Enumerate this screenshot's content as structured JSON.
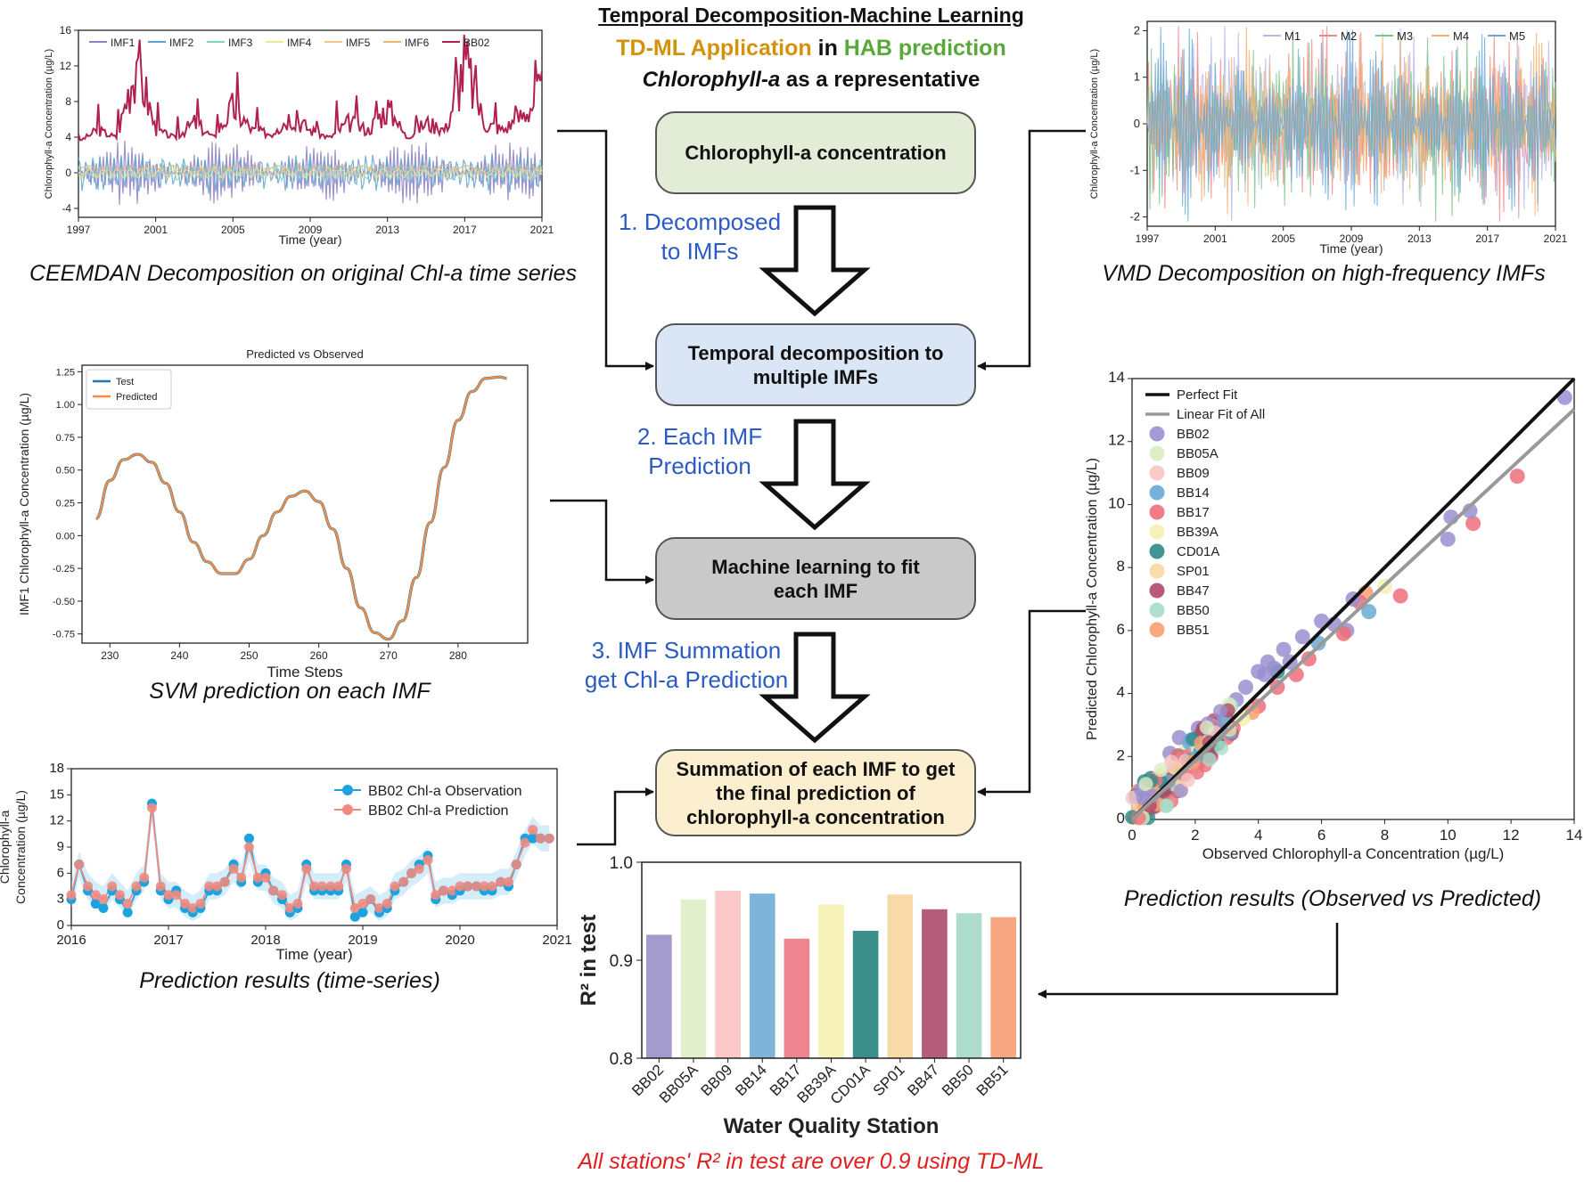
{
  "header": {
    "title": "Temporal Decomposition-Machine Learning",
    "app_part1": "TD-ML Application",
    "app_in": " in ",
    "app_part2": "HAB prediction",
    "subtitle_italic": "Chlorophyll-a",
    "subtitle_rest": " as a representative"
  },
  "colors": {
    "orange": "#d4920a",
    "green": "#5aa83a",
    "blue_step": "#2a5bc4",
    "red_note": "#e02020"
  },
  "flow": {
    "boxes": [
      {
        "text": "Chlorophyll-a concentration",
        "color": "#e2ecd6"
      },
      {
        "text": "Temporal decomposition to multiple IMFs",
        "color": "#dae6f6"
      },
      {
        "text": "Machine learning to fit each IMF",
        "color": "#c9c9c9"
      },
      {
        "text": "Summation of each IMF to get the final prediction of chlorophyll-a concentration",
        "color": "#fbefd0"
      }
    ],
    "steps": [
      "1. Decomposed\nto IMFs",
      "2. Each IMF\nPrediction",
      "3. IMF Summation\nget Chl-a Prediction"
    ]
  },
  "captions": {
    "ceemdan": "CEEMDAN Decomposition on original Chl-a time series",
    "vmd": "VMD Decomposition on high-frequency IMFs",
    "svm": "SVM prediction on each IMF",
    "ts": "Prediction results (time-series)",
    "scatter": "Prediction results (Observed vs Predicted)",
    "r2_note": "All stations' R² in test are over 0.9 using TD-ML"
  },
  "chart_data": [
    {
      "id": "ceemdan",
      "type": "line",
      "ylabel": "Chlorophyll-a Concentration (µg/L)",
      "xlabel": "Time (year)",
      "xticks": [
        "1997",
        "2001",
        "2005",
        "2009",
        "2013",
        "2017",
        "2021"
      ],
      "yticks": [
        "-4",
        "0",
        "4",
        "8",
        "12",
        "16"
      ],
      "ylim": [
        -5,
        16
      ],
      "legend": [
        "IMF1",
        "IMF2",
        "IMF3",
        "IMF4",
        "IMF5",
        "IMF6",
        "BB02"
      ],
      "legend_colors": [
        "#8f7fc4",
        "#5aa5d4",
        "#7fd4c4",
        "#e8e88a",
        "#f5c488",
        "#f0b470",
        "#b02050"
      ],
      "BB02_sample": {
        "x": [
          1997,
          1998,
          1999,
          2000,
          2001,
          2002,
          2003,
          2004,
          2005,
          2006,
          2007,
          2008,
          2009,
          2010,
          2011,
          2012,
          2013,
          2014,
          2015,
          2016,
          2017,
          2018,
          2019,
          2020,
          2021
        ],
        "y": [
          3.5,
          5,
          4,
          14.5,
          5,
          4,
          6,
          4,
          8,
          5,
          4.5,
          7,
          5,
          4,
          6,
          5,
          8,
          4,
          6,
          5,
          14,
          6,
          5,
          7,
          10
        ]
      }
    },
    {
      "id": "vmd",
      "type": "line",
      "ylabel": "Chlorophyll-a Concentration (µg/L)",
      "xlabel": "Time (year)",
      "xticks": [
        "1997",
        "2001",
        "2005",
        "2009",
        "2013",
        "2017",
        "2021"
      ],
      "yticks": [
        "-2",
        "-1",
        "0",
        "1",
        "2"
      ],
      "ylim": [
        -2.2,
        2.2
      ],
      "legend": [
        "M1",
        "M2",
        "M3",
        "M4",
        "M5"
      ],
      "legend_colors": [
        "#b8b8e8",
        "#f08a8a",
        "#7fc48a",
        "#f5b070",
        "#6aa8d8"
      ]
    },
    {
      "id": "svm",
      "type": "line",
      "title": "Predicted vs Observed",
      "ylabel": "IMF1 Chlorophyll-a Concentration (µg/L)",
      "xlabel": "Time Steps",
      "xlim": [
        226,
        290
      ],
      "xticks": [
        "230",
        "240",
        "250",
        "260",
        "270",
        "280"
      ],
      "yticks": [
        "-0.75",
        "-0.50",
        "-0.25",
        "0.00",
        "0.25",
        "0.50",
        "0.75",
        "1.00",
        "1.25"
      ],
      "ylim": [
        -0.82,
        1.3
      ],
      "series": [
        {
          "name": "Test",
          "color": "#1f77b4"
        },
        {
          "name": "Predicted",
          "color": "#ff8c3a"
        }
      ],
      "x": [
        228,
        230,
        232,
        234,
        236,
        238,
        240,
        242,
        244,
        246,
        248,
        250,
        252,
        254,
        256,
        258,
        260,
        262,
        264,
        266,
        268,
        270,
        272,
        274,
        276,
        278,
        280,
        282,
        284,
        286,
        287
      ],
      "y": [
        0.13,
        0.42,
        0.58,
        0.62,
        0.56,
        0.4,
        0.18,
        -0.05,
        -0.2,
        -0.29,
        -0.29,
        -0.18,
        0.0,
        0.18,
        0.3,
        0.34,
        0.26,
        0.05,
        -0.25,
        -0.55,
        -0.74,
        -0.79,
        -0.65,
        -0.32,
        0.1,
        0.52,
        0.88,
        1.1,
        1.2,
        1.21,
        1.2
      ]
    },
    {
      "id": "ts",
      "type": "line",
      "ylabel": "Chlorophyll-a\nConcentration (µg/L)",
      "xlabel": "Time (year)",
      "xticks": [
        "2016",
        "2017",
        "2018",
        "2019",
        "2020",
        "2021"
      ],
      "yticks": [
        "0",
        "3",
        "6",
        "9",
        "12",
        "15",
        "18"
      ],
      "ylim": [
        0,
        18
      ],
      "series": [
        {
          "name": "BB02 Chl-a Observation",
          "color": "#1aa3e0"
        },
        {
          "name": "BB02 Chl-a Prediction",
          "color": "#f08a80"
        }
      ],
      "x": [
        2016.0,
        2016.08,
        2016.17,
        2016.25,
        2016.33,
        2016.42,
        2016.5,
        2016.58,
        2016.67,
        2016.75,
        2016.83,
        2016.92,
        2017.0,
        2017.08,
        2017.17,
        2017.25,
        2017.33,
        2017.42,
        2017.5,
        2017.58,
        2017.67,
        2017.75,
        2017.83,
        2017.92,
        2018.0,
        2018.08,
        2018.17,
        2018.25,
        2018.33,
        2018.42,
        2018.5,
        2018.58,
        2018.67,
        2018.75,
        2018.83,
        2018.92,
        2019.0,
        2019.08,
        2019.17,
        2019.25,
        2019.33,
        2019.42,
        2019.5,
        2019.58,
        2019.67,
        2019.75,
        2019.83,
        2019.92,
        2020.0,
        2020.08,
        2020.17,
        2020.25,
        2020.33,
        2020.42,
        2020.5,
        2020.58,
        2020.67,
        2020.75,
        2020.83,
        2020.92
      ],
      "obs": [
        3,
        7,
        4,
        2.5,
        2,
        4,
        3,
        1.5,
        4,
        5,
        14,
        4,
        3,
        4,
        2,
        1.5,
        2,
        4,
        4,
        5,
        7,
        5,
        10,
        5,
        6,
        4,
        3,
        1.5,
        2,
        7,
        4,
        4,
        4,
        4,
        7,
        1,
        1.5,
        3,
        1.5,
        2,
        4,
        5,
        6,
        7,
        8,
        3,
        4,
        3.5,
        4,
        4.5,
        4.5,
        4,
        4,
        5,
        4.5,
        7,
        10,
        10,
        10,
        10
      ],
      "pred": [
        3.5,
        7,
        4.5,
        3.5,
        3,
        4.5,
        3.5,
        2.5,
        4.5,
        5.5,
        13.5,
        4.5,
        3.5,
        3.5,
        2.5,
        2,
        2.5,
        4.5,
        4.5,
        5,
        6.5,
        5.5,
        9,
        5.5,
        5.5,
        4,
        3.5,
        2,
        2.5,
        6.5,
        4.5,
        4.5,
        4.5,
        4.5,
        6.5,
        2,
        2.5,
        3,
        2,
        2.5,
        4.5,
        5,
        6,
        6.5,
        7.5,
        3.5,
        4,
        4,
        4.5,
        4.5,
        4.5,
        4.5,
        4.5,
        5,
        5,
        7,
        9.5,
        11,
        10,
        10
      ]
    },
    {
      "id": "scatter",
      "type": "scatter",
      "xlabel": "Observed Chlorophyll-a Concentration (µg/L)",
      "ylabel": "Predicted Chlorophyll-a Concentration (µg/L)",
      "xlim": [
        0,
        14
      ],
      "ylim": [
        0,
        14
      ],
      "xticks": [
        "0",
        "2",
        "4",
        "6",
        "8",
        "10",
        "12",
        "14"
      ],
      "yticks": [
        "0",
        "2",
        "4",
        "6",
        "8",
        "10",
        "12",
        "14"
      ],
      "lines": [
        {
          "name": "Perfect Fit",
          "color": "#111111",
          "slope": 1.0
        },
        {
          "name": "Linear Fit of All",
          "color": "#999999",
          "slope": 0.93
        }
      ],
      "stations": [
        "BB02",
        "BB05A",
        "BB09",
        "BB14",
        "BB17",
        "BB39A",
        "CD01A",
        "SP01",
        "BB47",
        "BB50",
        "BB51"
      ],
      "station_colors": [
        "#9a8fd0",
        "#dcecc0",
        "#f8c4c4",
        "#6aaad4",
        "#ee6e7a",
        "#f4f0b0",
        "#2e8a8a",
        "#f8d8a0",
        "#b04868",
        "#a8dcc8",
        "#f8a070"
      ],
      "points": [
        [
          13.7,
          13.4,
          0
        ],
        [
          12.2,
          10.9,
          4
        ],
        [
          10.8,
          9.4,
          4
        ],
        [
          10.7,
          9.8,
          0
        ],
        [
          10.1,
          9.6,
          0
        ],
        [
          10,
          8.9,
          0
        ],
        [
          8.5,
          7.1,
          4
        ],
        [
          8.0,
          7.4,
          5
        ],
        [
          7.4,
          7.2,
          10
        ],
        [
          7.5,
          6.6,
          3
        ],
        [
          7.2,
          6.9,
          4
        ],
        [
          7.0,
          7.0,
          0
        ],
        [
          6.8,
          6.0,
          0
        ],
        [
          6.7,
          5.9,
          4
        ],
        [
          6.4,
          6.2,
          0
        ],
        [
          6.0,
          6.3,
          0
        ],
        [
          5.9,
          5.6,
          3
        ],
        [
          5.6,
          5.1,
          4
        ],
        [
          5.4,
          5.8,
          0
        ],
        [
          5.2,
          4.6,
          4
        ],
        [
          5.0,
          5.0,
          0
        ],
        [
          4.8,
          5.4,
          0
        ],
        [
          4.6,
          4.7,
          6
        ],
        [
          4.6,
          4.2,
          4
        ],
        [
          4.5,
          4.8,
          0
        ],
        [
          4.3,
          5.0,
          0
        ],
        [
          4.2,
          4.6,
          0
        ],
        [
          4.0,
          4.7,
          0
        ],
        [
          4.0,
          3.6,
          4
        ],
        [
          3.8,
          3.4,
          10
        ],
        [
          3.6,
          4.2,
          0
        ],
        [
          3.5,
          3.2,
          5
        ],
        [
          3.3,
          3.8,
          0
        ],
        [
          3.2,
          2.9,
          4
        ],
        [
          3.0,
          3.4,
          10
        ],
        [
          3.0,
          2.6,
          4
        ],
        [
          2.8,
          3.1,
          0
        ],
        [
          2.7,
          2.4,
          6
        ],
        [
          2.6,
          2.7,
          1
        ],
        [
          2.5,
          2.0,
          4
        ],
        [
          2.4,
          2.6,
          0
        ],
        [
          2.2,
          2.3,
          10
        ],
        [
          2.1,
          1.8,
          4
        ],
        [
          2.0,
          2.2,
          0
        ],
        [
          1.9,
          1.6,
          7
        ],
        [
          1.8,
          2.0,
          6
        ],
        [
          1.6,
          1.5,
          4
        ],
        [
          1.5,
          1.7,
          10
        ],
        [
          1.4,
          1.1,
          4
        ],
        [
          1.3,
          1.5,
          0
        ],
        [
          1.2,
          1.0,
          6
        ],
        [
          1.1,
          1.3,
          10
        ],
        [
          1.0,
          0.8,
          4
        ],
        [
          0.9,
          1.0,
          8
        ],
        [
          0.8,
          0.6,
          6
        ],
        [
          0.7,
          0.9,
          10
        ],
        [
          0.6,
          0.5,
          4
        ],
        [
          0.5,
          0.7,
          8
        ],
        [
          0.4,
          0.3,
          6
        ],
        [
          0.3,
          0.5,
          10
        ],
        [
          0.2,
          0.2,
          4
        ],
        [
          0.4,
          1.2,
          6
        ],
        [
          0.6,
          1.3,
          6
        ],
        [
          0.2,
          0.9,
          10
        ],
        [
          1.5,
          2.6,
          0
        ],
        [
          2.1,
          2.9,
          0
        ],
        [
          1.2,
          2.1,
          0
        ]
      ]
    },
    {
      "id": "r2",
      "type": "bar",
      "xlabel": "Water Quality Station",
      "ylabel": "R² in test",
      "ylim": [
        0.8,
        1.0
      ],
      "yticks": [
        "0.8",
        "0.9",
        "1.0"
      ],
      "categories": [
        "BB02",
        "BB05A",
        "BB09",
        "BB14",
        "BB17",
        "BB39A",
        "CD01A",
        "SP01",
        "BB47",
        "BB50",
        "BB51"
      ],
      "values": [
        0.926,
        0.962,
        0.971,
        0.968,
        0.922,
        0.957,
        0.93,
        0.967,
        0.952,
        0.948,
        0.944
      ],
      "colors": [
        "#a39bcc",
        "#e1efca",
        "#fbc9c9",
        "#7db4d8",
        "#f08592",
        "#f7f3b8",
        "#3b8f8a",
        "#f8d9a8",
        "#b55e7c",
        "#aedccc",
        "#f8a782"
      ]
    }
  ]
}
